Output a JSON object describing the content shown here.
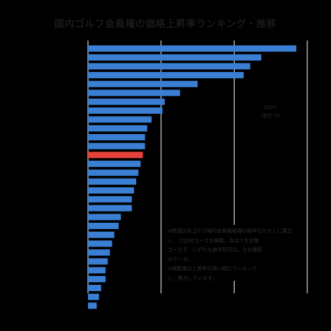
{
  "chart_data": {
    "type": "bar",
    "orientation": "horizontal",
    "title": "国内ゴルフ会員権の価格上昇率ランキング・推移",
    "xlabel": "",
    "legend": {
      "placement": "right",
      "entries": [
        "2024",
        "(単位:%)"
      ]
    },
    "note_lines": [
      "※数値は各ゴルフ場の会員権相場の前年比をもとに算出",
      "し、上位30コースを掲載。赤はうち対象",
      "コースで、いずれも前年同月比。なお最新",
      "のデータ。",
      "※掲載順は上昇率の高い順にランキング",
      "し、表示しています。"
    ],
    "xlim": [
      0,
      100
    ],
    "grid": true,
    "colors": {
      "bar": "#3b7fd4",
      "highlight": "#e8413c",
      "grid": "#ffffff"
    },
    "highlight_index": 12,
    "values": [
      95,
      79,
      74,
      71,
      50,
      42,
      35,
      34,
      29,
      27,
      26,
      26,
      25,
      24,
      23,
      22,
      21,
      20,
      20,
      15,
      14,
      12,
      11,
      10,
      9,
      8,
      8,
      6,
      5,
      4
    ],
    "categories": [
      "",
      "",
      "",
      "",
      "",
      "",
      "",
      "",
      "",
      "",
      "",
      "",
      "",
      "",
      "",
      "",
      "",
      "",
      "",
      "",
      "",
      "",
      "",
      "",
      "",
      "",
      "",
      "",
      "",
      ""
    ]
  }
}
